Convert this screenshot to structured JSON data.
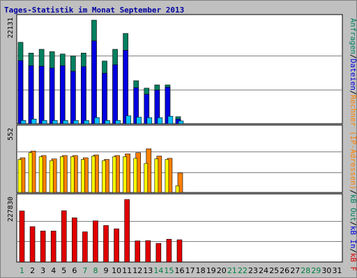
{
  "chart_data": {
    "title": "Tages-Statistik im Monat September 2013",
    "x": [
      "1",
      "2",
      "3",
      "4",
      "5",
      "6",
      "7",
      "8",
      "9",
      "10",
      "11",
      "12",
      "13",
      "14",
      "15",
      "16",
      "17",
      "18",
      "19",
      "20",
      "21",
      "22",
      "23",
      "24",
      "25",
      "26",
      "27",
      "28",
      "29",
      "30",
      "31"
    ],
    "weekend_days": [
      "1",
      "7",
      "8",
      "14",
      "15",
      "21",
      "22",
      "28",
      "29"
    ],
    "colors": {
      "panel_bg": "#ffffff",
      "day_normal": "#000000",
      "day_weekend": "#008040",
      "grid": "#808080"
    },
    "panels": [
      {
        "type": "bar",
        "max_label": "22131",
        "ylim": [
          0,
          22131
        ],
        "series": [
          {
            "name": "Anfragen",
            "color": "#008060",
            "values": [
              17400,
              15100,
              15900,
              15400,
              14900,
              14500,
              15100,
              22131,
              13400,
              15900,
              19300,
              9200,
              7600,
              8300,
              8300,
              1500,
              null,
              null,
              null,
              null,
              null,
              null,
              null,
              null,
              null,
              null,
              null,
              null,
              null,
              null,
              null
            ]
          },
          {
            "name": "Dateien",
            "color": "#0000e0",
            "values": [
              13500,
              12400,
              12300,
              11900,
              12400,
              11200,
              12200,
              17700,
              10800,
              12600,
              15700,
              7700,
              6300,
              7200,
              7800,
              1000,
              null,
              null,
              null,
              null,
              null,
              null,
              null,
              null,
              null,
              null,
              null,
              null,
              null,
              null,
              null
            ]
          },
          {
            "name": "Rechner (IP-Adressen)",
            "color": "#00c0ff",
            "values": [
              700,
              1000,
              700,
              700,
              700,
              700,
              700,
              1300,
              700,
              700,
              1700,
              1400,
              1300,
              1300,
              1600,
              600,
              null,
              null,
              null,
              null,
              null,
              null,
              null,
              null,
              null,
              null,
              null,
              null,
              null,
              null,
              null
            ]
          }
        ]
      },
      {
        "type": "bar",
        "max_label": "552",
        "ylim": [
          0,
          552
        ],
        "series": [
          {
            "name": "Rechner (IP-Adressen)",
            "color": "#ff8000",
            "values": [
              310,
              370,
              330,
              300,
              330,
              330,
              310,
              335,
              295,
              330,
              345,
              355,
              390,
              325,
              305,
              175,
              null,
              null,
              null,
              null,
              null,
              null,
              null,
              null,
              null,
              null,
              null,
              null,
              null,
              null,
              null
            ]
          },
          {
            "name": "Out",
            "color": "#ffff00",
            "values": [
              295,
              355,
              320,
              285,
              320,
              320,
              295,
              325,
              285,
              320,
              320,
              305,
              260,
              300,
              295,
              60,
              null,
              null,
              null,
              null,
              null,
              null,
              null,
              null,
              null,
              null,
              null,
              null,
              null,
              null,
              null
            ]
          }
        ]
      },
      {
        "type": "bar",
        "max_label": "227830",
        "ylim": [
          0,
          227830
        ],
        "series": [
          {
            "name": "kB F",
            "color": "#e00000",
            "values": [
              186000,
              129000,
              113000,
              113000,
              187000,
              161000,
              110000,
              150000,
              133000,
              121000,
              227830,
              77000,
              78000,
              68000,
              83000,
              81000,
              null,
              null,
              null,
              null,
              null,
              null,
              null,
              null,
              null,
              null,
              null,
              null,
              null,
              null,
              null
            ]
          }
        ]
      }
    ],
    "right_legend": [
      {
        "text": "Anfragen",
        "color": "#008060"
      },
      {
        "text": "/",
        "color": "#000000"
      },
      {
        "text": "Dateien",
        "color": "#0000e0"
      },
      {
        "text": "/",
        "color": "#000000"
      },
      {
        "text": "Rechner (IP-Adressen)",
        "color": "#ff8000"
      },
      {
        "text": "/",
        "color": "#000000"
      },
      {
        "text": "kB Out",
        "color": "#008060"
      },
      {
        "text": "/",
        "color": "#000000"
      },
      {
        "text": "kB In",
        "color": "#0000e0"
      },
      {
        "text": "/",
        "color": "#000000"
      },
      {
        "text": "kB F",
        "color": "#e00000"
      }
    ]
  }
}
